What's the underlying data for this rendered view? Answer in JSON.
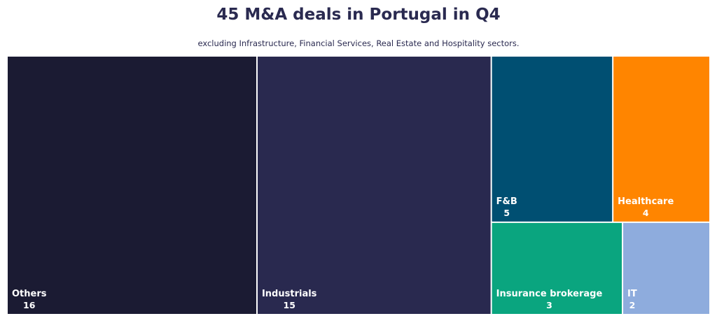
{
  "chart_data": {
    "type": "treemap",
    "title": "45 M&A deals in Portugal in Q4",
    "subtitle": "excluding Infrastructure, Financial Services, Real Estate and Hospitality sectors.",
    "items": [
      {
        "name": "Others",
        "value": 16,
        "color": "#1b1b33"
      },
      {
        "name": "Industrials",
        "value": 15,
        "color": "#29294f"
      },
      {
        "name": "F&B",
        "value": 5,
        "color": "#004f72"
      },
      {
        "name": "Healthcare",
        "value": 4,
        "color": "#ff8500"
      },
      {
        "name": "Insurance brokerage",
        "value": 3,
        "color": "#0aa57f"
      },
      {
        "name": "IT",
        "value": 2,
        "color": "#8eacdd"
      }
    ]
  }
}
